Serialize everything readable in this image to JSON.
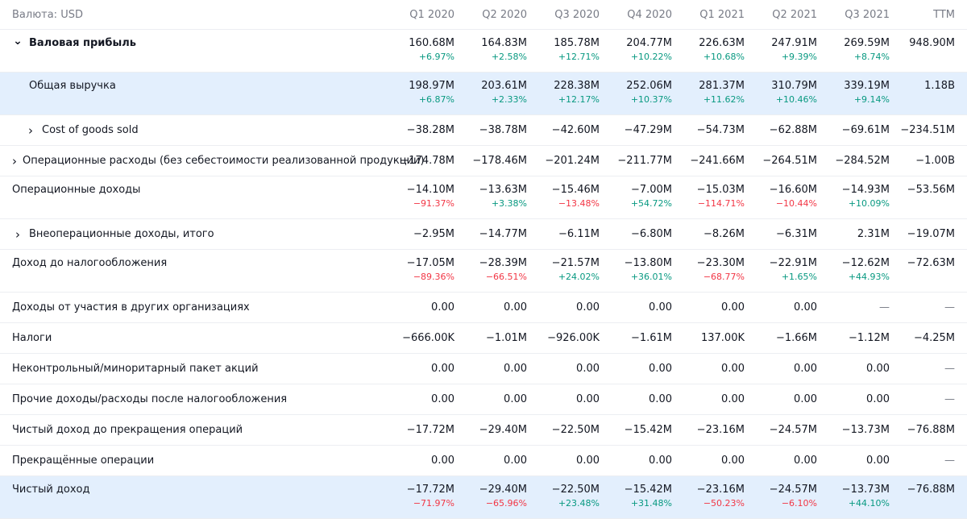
{
  "currency_label": "Валюта: USD",
  "columns": [
    "Q1 2020",
    "Q2 2020",
    "Q3 2020",
    "Q4 2020",
    "Q1 2021",
    "Q2 2021",
    "Q3 2021",
    "TTM"
  ],
  "rows": [
    {
      "label": "Валовая прибыль",
      "values": [
        "160.68M",
        "164.83M",
        "185.78M",
        "204.77M",
        "226.63M",
        "247.91M",
        "269.59M",
        "948.90M"
      ],
      "changes": [
        "+6.97%",
        "+2.58%",
        "+12.71%",
        "+10.22%",
        "+10.68%",
        "+9.39%",
        "+8.74%"
      ]
    },
    {
      "label": "Общая выручка",
      "values": [
        "198.97M",
        "203.61M",
        "228.38M",
        "252.06M",
        "281.37M",
        "310.79M",
        "339.19M",
        "1.18B"
      ],
      "changes": [
        "+6.87%",
        "+2.33%",
        "+12.17%",
        "+10.37%",
        "+11.62%",
        "+10.46%",
        "+9.14%"
      ]
    },
    {
      "label": "Cost of goods sold",
      "values": [
        "−38.28M",
        "−38.78M",
        "−42.60M",
        "−47.29M",
        "−54.73M",
        "−62.88M",
        "−69.61M",
        "−234.51M"
      ]
    },
    {
      "label": "Операционные расходы (без себестоимости реализованной продукции)",
      "values": [
        "−174.78M",
        "−178.46M",
        "−201.24M",
        "−211.77M",
        "−241.66M",
        "−264.51M",
        "−284.52M",
        "−1.00B"
      ]
    },
    {
      "label": "Операционные доходы",
      "values": [
        "−14.10M",
        "−13.63M",
        "−15.46M",
        "−7.00M",
        "−15.03M",
        "−16.60M",
        "−14.93M",
        "−53.56M"
      ],
      "changes": [
        "−91.37%",
        "+3.38%",
        "−13.48%",
        "+54.72%",
        "−114.71%",
        "−10.44%",
        "+10.09%"
      ]
    },
    {
      "label": "Внеоперационные доходы, итого",
      "values": [
        "−2.95M",
        "−14.77M",
        "−6.11M",
        "−6.80M",
        "−8.26M",
        "−6.31M",
        "2.31M",
        "−19.07M"
      ]
    },
    {
      "label": "Доход до налогообложения",
      "values": [
        "−17.05M",
        "−28.39M",
        "−21.57M",
        "−13.80M",
        "−23.30M",
        "−22.91M",
        "−12.62M",
        "−72.63M"
      ],
      "changes": [
        "−89.36%",
        "−66.51%",
        "+24.02%",
        "+36.01%",
        "−68.77%",
        "+1.65%",
        "+44.93%"
      ]
    },
    {
      "label": "Доходы от участия в других организациях",
      "values": [
        "0.00",
        "0.00",
        "0.00",
        "0.00",
        "0.00",
        "0.00",
        "—",
        "—"
      ]
    },
    {
      "label": "Налоги",
      "values": [
        "−666.00K",
        "−1.01M",
        "−926.00K",
        "−1.61M",
        "137.00K",
        "−1.66M",
        "−1.12M",
        "−4.25M"
      ]
    },
    {
      "label": "Неконтрольный/миноритарный пакет акций",
      "values": [
        "0.00",
        "0.00",
        "0.00",
        "0.00",
        "0.00",
        "0.00",
        "0.00",
        "—"
      ]
    },
    {
      "label": "Прочие доходы/расходы после налогообложения",
      "values": [
        "0.00",
        "0.00",
        "0.00",
        "0.00",
        "0.00",
        "0.00",
        "0.00",
        "—"
      ]
    },
    {
      "label": "Чистый доход до прекращения операций",
      "values": [
        "−17.72M",
        "−29.40M",
        "−22.50M",
        "−15.42M",
        "−23.16M",
        "−24.57M",
        "−13.73M",
        "−76.88M"
      ]
    },
    {
      "label": "Прекращённые операции",
      "values": [
        "0.00",
        "0.00",
        "0.00",
        "0.00",
        "0.00",
        "0.00",
        "0.00",
        "—"
      ]
    },
    {
      "label": "Чистый доход",
      "values": [
        "−17.72M",
        "−29.40M",
        "−22.50M",
        "−15.42M",
        "−23.16M",
        "−24.57M",
        "−13.73M",
        "−76.88M"
      ],
      "changes": [
        "−71.97%",
        "−65.96%",
        "+23.48%",
        "+31.48%",
        "−50.23%",
        "−6.10%",
        "+44.10%"
      ]
    }
  ],
  "colors": {
    "positive": "#089981",
    "negative": "#f23645",
    "highlight_row": "#e3effd",
    "muted_text": "#787b86"
  }
}
